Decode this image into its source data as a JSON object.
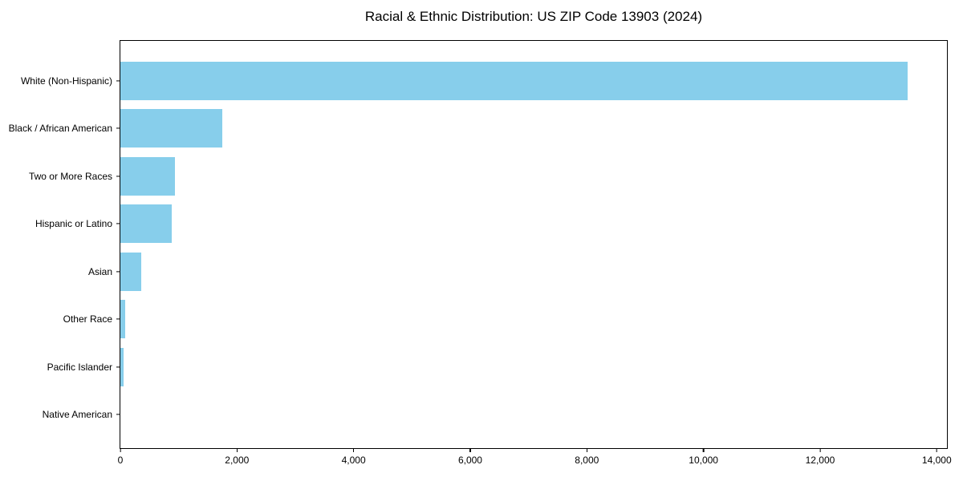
{
  "title": "Racial & Ethnic Distribution: US ZIP Code 13903 (2024)",
  "chart_data": {
    "type": "bar",
    "orientation": "horizontal",
    "title": "Racial & Ethnic Distribution: US ZIP Code 13903 (2024)",
    "categories": [
      "White (Non-Hispanic)",
      "Black / African American",
      "Two or More Races",
      "Hispanic or Latino",
      "Asian",
      "Other Race",
      "Pacific Islander",
      "Native American"
    ],
    "values": [
      13500,
      1750,
      930,
      885,
      355,
      85,
      50,
      0
    ],
    "xlabel": "",
    "ylabel": "",
    "xlim": [
      0,
      14175
    ],
    "xticks": [
      0,
      2000,
      4000,
      6000,
      8000,
      10000,
      12000,
      14000
    ],
    "xtick_labels": [
      "0",
      "2,000",
      "4,000",
      "6,000",
      "8,000",
      "10,000",
      "12,000",
      "14,000"
    ],
    "bar_color": "#87CEEB",
    "grid": false,
    "legend": null,
    "background_color": "#FFFFFF",
    "axis_color": "#000000",
    "text_color": "#000000"
  }
}
